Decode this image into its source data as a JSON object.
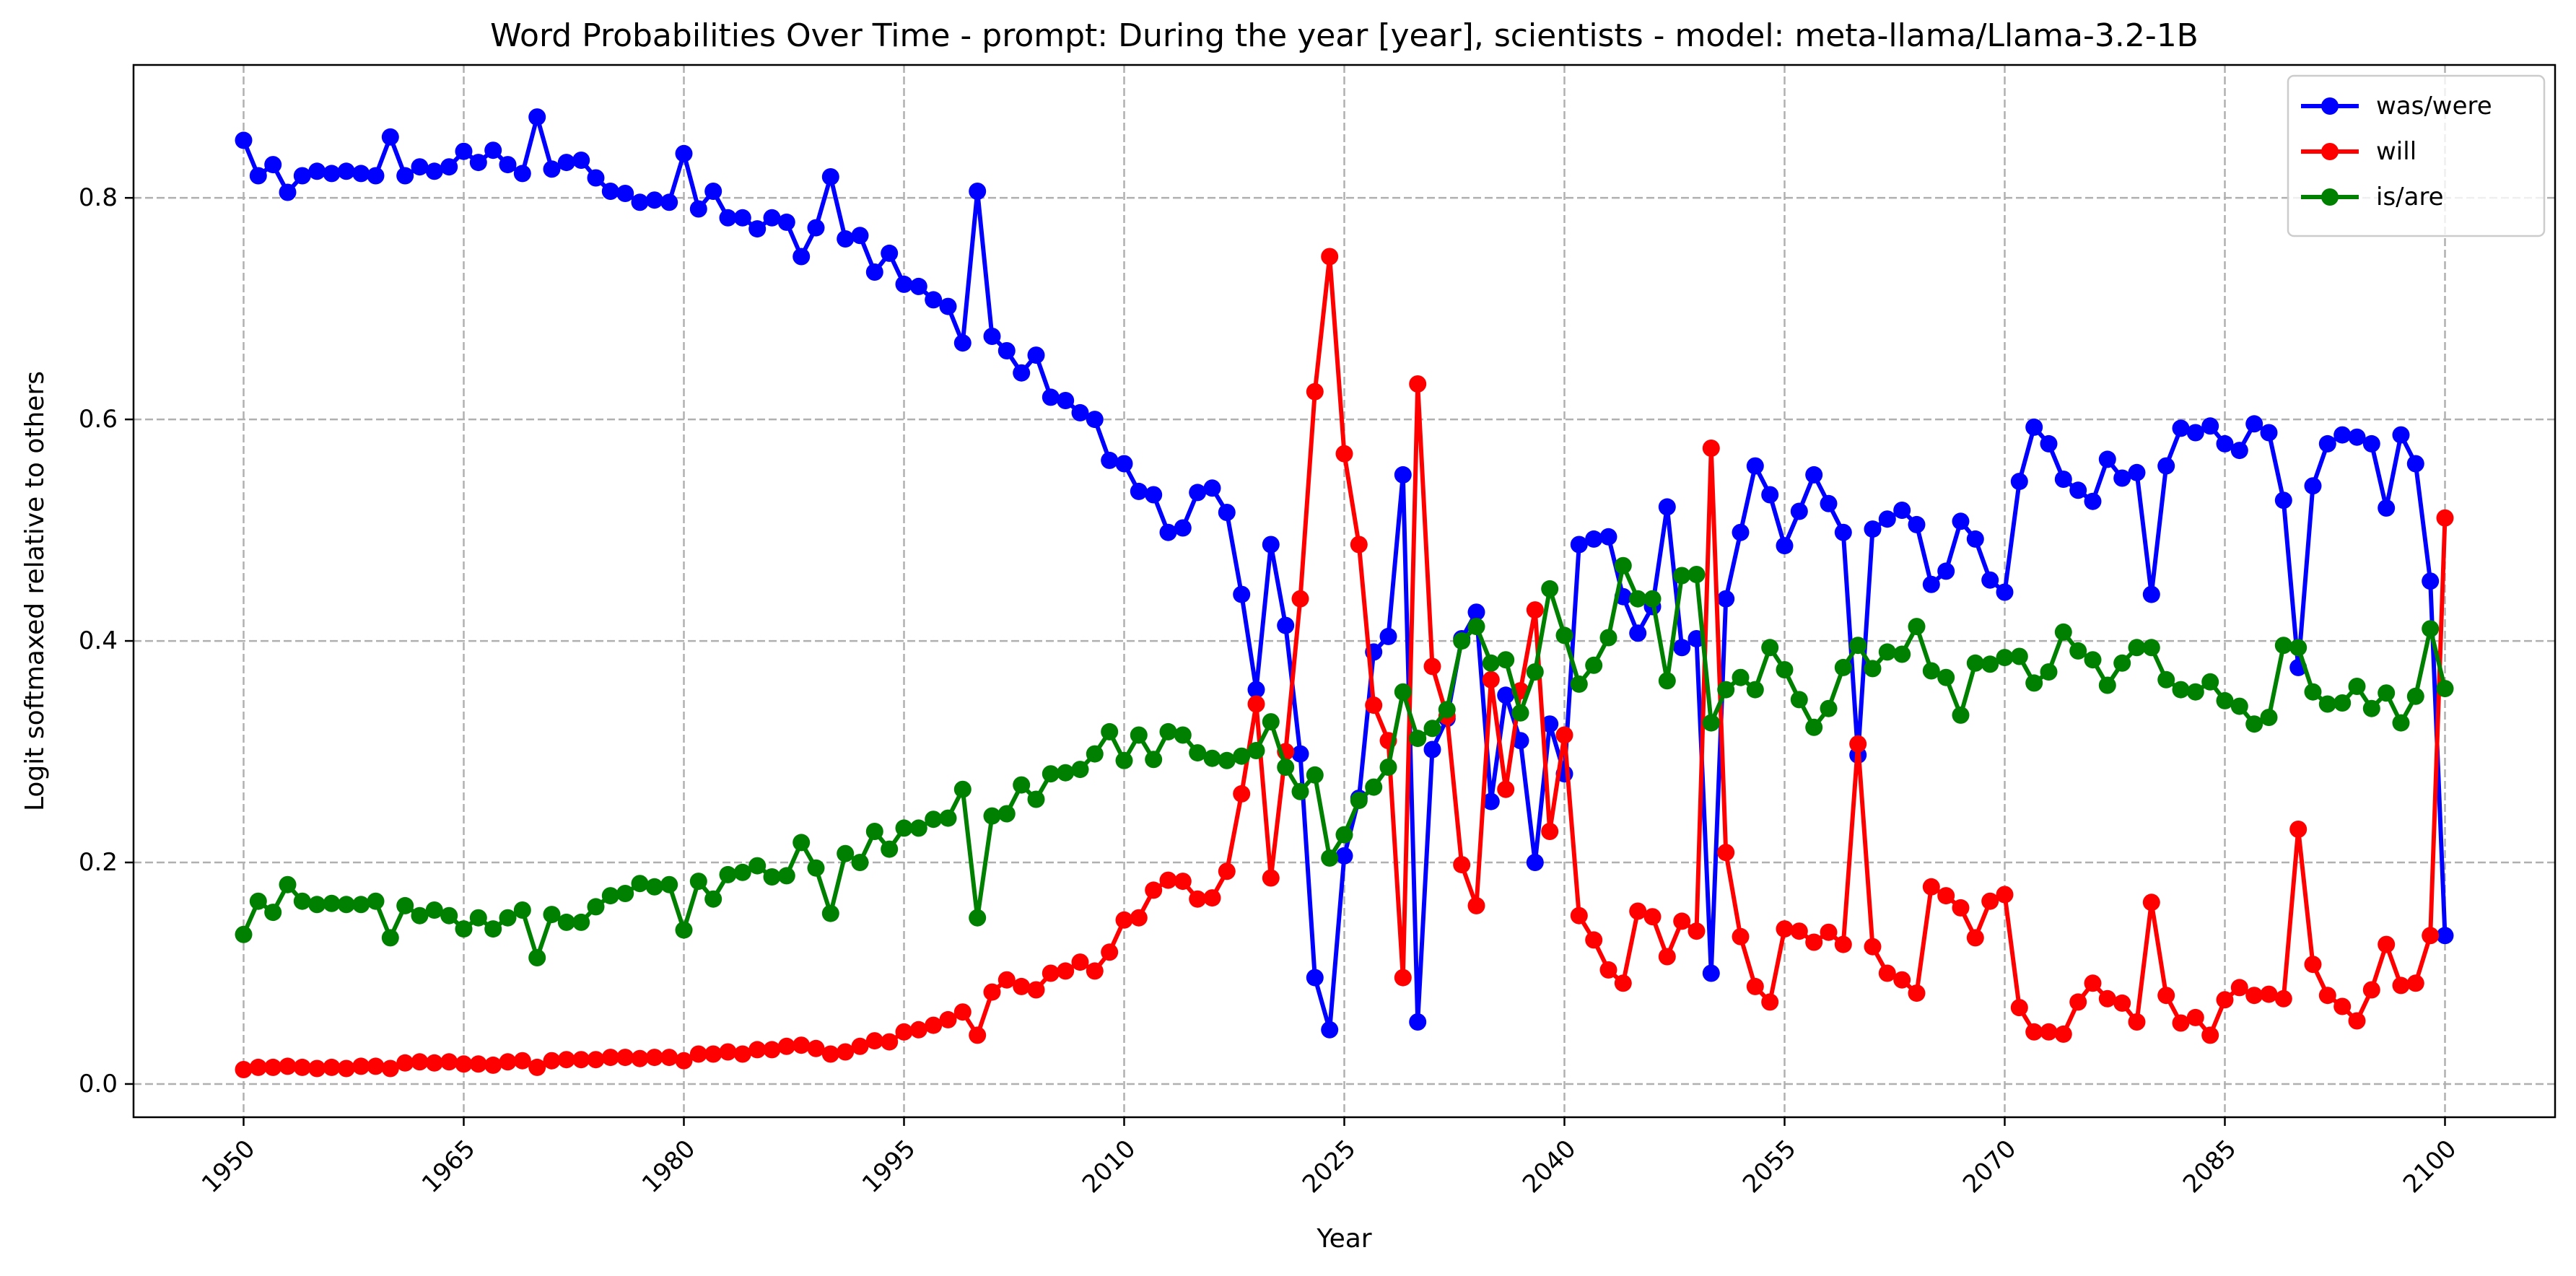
{
  "chart_data": {
    "type": "line",
    "title": "Word Probabilities Over Time - prompt: During the year [year], scientists - model: meta-llama/Llama-3.2-1B",
    "xlabel": "Year",
    "ylabel": "Logit softmaxed relative to others",
    "xlim": [
      1942.5,
      2107.5
    ],
    "ylim": [
      -0.03,
      0.92
    ],
    "xticks": [
      1950,
      1965,
      1980,
      1995,
      2010,
      2025,
      2040,
      2055,
      2070,
      2085,
      2100
    ],
    "yticks": [
      0.0,
      0.2,
      0.4,
      0.6,
      0.8
    ],
    "ytick_labels": [
      "0.0",
      "0.2",
      "0.4",
      "0.6",
      "0.8"
    ],
    "grid": true,
    "legend_position": "top-right",
    "x_start": 1950,
    "x_end": 2100,
    "series": [
      {
        "name": "was/were",
        "color": "#0000ff",
        "values": [
          0.852,
          0.82,
          0.83,
          0.805,
          0.82,
          0.824,
          0.822,
          0.824,
          0.822,
          0.82,
          0.855,
          0.82,
          0.828,
          0.824,
          0.828,
          0.842,
          0.832,
          0.843,
          0.83,
          0.822,
          0.873,
          0.826,
          0.832,
          0.834,
          0.818,
          0.806,
          0.804,
          0.796,
          0.798,
          0.796,
          0.84,
          0.79,
          0.806,
          0.782,
          0.782,
          0.772,
          0.782,
          0.778,
          0.747,
          0.773,
          0.819,
          0.763,
          0.766,
          0.733,
          0.75,
          0.722,
          0.72,
          0.708,
          0.702,
          0.669,
          0.806,
          0.675,
          0.662,
          0.642,
          0.658,
          0.62,
          0.617,
          0.606,
          0.6,
          0.563,
          0.56,
          0.535,
          0.532,
          0.498,
          0.502,
          0.534,
          0.538,
          0.516,
          0.442,
          0.356,
          0.487,
          0.414,
          0.298,
          0.096,
          0.049,
          0.206,
          0.258,
          0.39,
          0.404,
          0.55,
          0.056,
          0.302,
          0.33,
          0.402,
          0.426,
          0.255,
          0.351,
          0.31,
          0.2,
          0.325,
          0.28,
          0.487,
          0.492,
          0.494,
          0.44,
          0.407,
          0.431,
          0.521,
          0.394,
          0.402,
          0.1,
          0.438,
          0.498,
          0.558,
          0.532,
          0.486,
          0.517,
          0.55,
          0.524,
          0.498,
          0.297,
          0.501,
          0.51,
          0.518,
          0.505,
          0.451,
          0.463,
          0.508,
          0.492,
          0.455,
          0.444,
          0.544,
          0.593,
          0.578,
          0.546,
          0.536,
          0.526,
          0.564,
          0.547,
          0.552,
          0.442,
          0.558,
          0.592,
          0.588,
          0.594,
          0.578,
          0.572,
          0.596,
          0.588,
          0.527,
          0.376,
          0.54,
          0.578,
          0.586,
          0.584,
          0.578,
          0.52,
          0.586,
          0.56,
          0.454,
          0.134
        ]
      },
      {
        "name": "will",
        "color": "#ff0000",
        "values": [
          0.013,
          0.015,
          0.015,
          0.016,
          0.015,
          0.014,
          0.015,
          0.014,
          0.016,
          0.016,
          0.014,
          0.019,
          0.02,
          0.019,
          0.02,
          0.018,
          0.018,
          0.017,
          0.02,
          0.021,
          0.015,
          0.021,
          0.022,
          0.022,
          0.022,
          0.024,
          0.024,
          0.023,
          0.024,
          0.024,
          0.021,
          0.027,
          0.027,
          0.029,
          0.027,
          0.031,
          0.031,
          0.034,
          0.035,
          0.032,
          0.027,
          0.029,
          0.034,
          0.039,
          0.038,
          0.047,
          0.049,
          0.053,
          0.058,
          0.065,
          0.044,
          0.083,
          0.094,
          0.088,
          0.085,
          0.1,
          0.102,
          0.11,
          0.102,
          0.119,
          0.148,
          0.15,
          0.175,
          0.184,
          0.183,
          0.167,
          0.168,
          0.192,
          0.262,
          0.343,
          0.186,
          0.3,
          0.438,
          0.625,
          0.747,
          0.569,
          0.487,
          0.342,
          0.31,
          0.096,
          0.632,
          0.377,
          0.332,
          0.198,
          0.161,
          0.365,
          0.266,
          0.355,
          0.428,
          0.228,
          0.315,
          0.152,
          0.13,
          0.103,
          0.091,
          0.156,
          0.151,
          0.115,
          0.147,
          0.138,
          0.574,
          0.209,
          0.133,
          0.088,
          0.074,
          0.14,
          0.138,
          0.128,
          0.137,
          0.126,
          0.307,
          0.124,
          0.1,
          0.094,
          0.082,
          0.178,
          0.17,
          0.159,
          0.132,
          0.165,
          0.171,
          0.069,
          0.047,
          0.047,
          0.045,
          0.074,
          0.091,
          0.077,
          0.073,
          0.056,
          0.164,
          0.08,
          0.055,
          0.06,
          0.044,
          0.076,
          0.087,
          0.08,
          0.081,
          0.077,
          0.23,
          0.108,
          0.08,
          0.07,
          0.057,
          0.085,
          0.126,
          0.089,
          0.091,
          0.134,
          0.511
        ]
      },
      {
        "name": "is/are",
        "color": "#008000",
        "values": [
          0.135,
          0.165,
          0.155,
          0.18,
          0.165,
          0.162,
          0.163,
          0.162,
          0.162,
          0.165,
          0.132,
          0.161,
          0.152,
          0.157,
          0.152,
          0.14,
          0.15,
          0.14,
          0.15,
          0.157,
          0.114,
          0.153,
          0.146,
          0.146,
          0.16,
          0.17,
          0.172,
          0.181,
          0.178,
          0.18,
          0.139,
          0.183,
          0.167,
          0.189,
          0.191,
          0.197,
          0.187,
          0.188,
          0.218,
          0.195,
          0.154,
          0.208,
          0.2,
          0.228,
          0.212,
          0.231,
          0.231,
          0.239,
          0.24,
          0.266,
          0.15,
          0.242,
          0.244,
          0.27,
          0.257,
          0.28,
          0.281,
          0.284,
          0.298,
          0.318,
          0.292,
          0.315,
          0.293,
          0.318,
          0.315,
          0.299,
          0.294,
          0.292,
          0.296,
          0.301,
          0.327,
          0.286,
          0.264,
          0.279,
          0.204,
          0.225,
          0.256,
          0.268,
          0.286,
          0.354,
          0.312,
          0.321,
          0.338,
          0.4,
          0.413,
          0.38,
          0.383,
          0.335,
          0.372,
          0.447,
          0.405,
          0.361,
          0.378,
          0.403,
          0.468,
          0.438,
          0.438,
          0.364,
          0.459,
          0.46,
          0.326,
          0.356,
          0.367,
          0.356,
          0.394,
          0.374,
          0.347,
          0.322,
          0.339,
          0.376,
          0.396,
          0.375,
          0.39,
          0.388,
          0.413,
          0.373,
          0.367,
          0.333,
          0.38,
          0.379,
          0.385,
          0.386,
          0.362,
          0.372,
          0.408,
          0.391,
          0.383,
          0.36,
          0.38,
          0.394,
          0.394,
          0.365,
          0.356,
          0.354,
          0.363,
          0.346,
          0.341,
          0.325,
          0.331,
          0.396,
          0.394,
          0.354,
          0.343,
          0.344,
          0.359,
          0.339,
          0.353,
          0.326,
          0.35,
          0.411,
          0.357
        ]
      }
    ]
  }
}
